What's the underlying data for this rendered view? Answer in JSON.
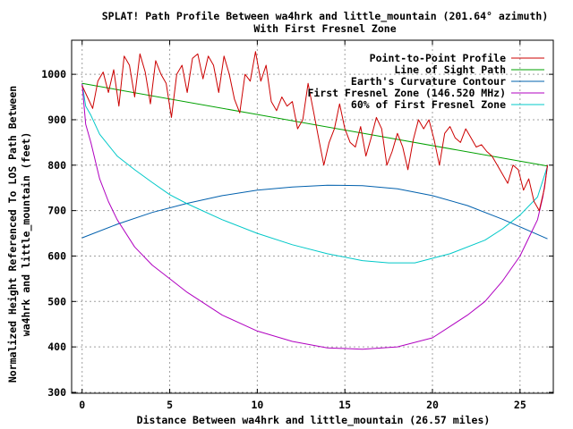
{
  "chart_data": {
    "type": "line",
    "title": "SPLAT! Path Profile Between wa4hrk and little_mountain (201.64° azimuth)",
    "subtitle": "With First Fresnel Zone",
    "xlabel": "Distance Between wa4hrk and little_mountain (26.57 miles)",
    "ylabel_line1": "Normalized Height Referenced To LOS Path Between",
    "ylabel_line2": "wa4hrk and little_mountain (feet)",
    "xlim": [
      -0.6,
      26.9
    ],
    "ylim": [
      298,
      1075
    ],
    "x_ticks": [
      0,
      5,
      10,
      15,
      20,
      25
    ],
    "y_ticks": [
      300,
      400,
      500,
      600,
      700,
      800,
      900,
      1000
    ],
    "grid": true,
    "legend_position": "top-right",
    "series": [
      {
        "name": "Point-to-Point Profile",
        "color": "#cc0000",
        "x": [
          0,
          0.3,
          0.6,
          0.9,
          1.2,
          1.5,
          1.8,
          2.1,
          2.4,
          2.7,
          3.0,
          3.3,
          3.6,
          3.9,
          4.2,
          4.5,
          4.8,
          5.1,
          5.4,
          5.7,
          6.0,
          6.3,
          6.6,
          6.9,
          7.2,
          7.5,
          7.8,
          8.1,
          8.4,
          8.7,
          9.0,
          9.3,
          9.6,
          9.9,
          10.2,
          10.5,
          10.8,
          11.1,
          11.4,
          11.7,
          12.0,
          12.3,
          12.6,
          12.9,
          13.2,
          13.5,
          13.8,
          14.1,
          14.4,
          14.7,
          15.0,
          15.3,
          15.6,
          15.9,
          16.2,
          16.5,
          16.8,
          17.1,
          17.4,
          17.7,
          18.0,
          18.3,
          18.6,
          18.9,
          19.2,
          19.5,
          19.8,
          20.1,
          20.4,
          20.7,
          21.0,
          21.3,
          21.6,
          21.9,
          22.2,
          22.5,
          22.8,
          23.1,
          23.4,
          23.7,
          24.0,
          24.3,
          24.6,
          24.9,
          25.2,
          25.5,
          25.8,
          26.1,
          26.4,
          26.57
        ],
        "y": [
          975,
          950,
          925,
          985,
          1005,
          960,
          1010,
          930,
          1040,
          1020,
          950,
          1045,
          1005,
          935,
          1030,
          1000,
          980,
          905,
          1000,
          1020,
          960,
          1035,
          1045,
          990,
          1040,
          1020,
          960,
          1040,
          1000,
          945,
          915,
          1000,
          985,
          1050,
          985,
          1020,
          940,
          920,
          950,
          930,
          940,
          880,
          900,
          980,
          920,
          860,
          800,
          850,
          880,
          935,
          880,
          850,
          840,
          885,
          820,
          860,
          905,
          880,
          800,
          830,
          870,
          840,
          790,
          855,
          900,
          880,
          900,
          855,
          800,
          870,
          885,
          860,
          850,
          880,
          860,
          840,
          845,
          830,
          820,
          800,
          780,
          760,
          800,
          790,
          745,
          770,
          720,
          700,
          750,
          800
        ]
      },
      {
        "name": "Line of Sight Path",
        "color": "#00a000",
        "x": [
          0,
          26.57
        ],
        "y": [
          980,
          798
        ]
      },
      {
        "name": "Earth's Curvature Contour",
        "color": "#0060ad",
        "x": [
          0,
          2,
          4,
          6,
          8,
          10,
          12,
          14,
          16,
          18,
          20,
          22,
          24,
          26.57
        ],
        "y": [
          640,
          670,
          696,
          716,
          733,
          745,
          752,
          756,
          755,
          748,
          733,
          711,
          681,
          638
        ]
      },
      {
        "name": "First Fresnel Zone (146.520 MHz)",
        "color": "#b000c0",
        "x": [
          0,
          0.2,
          0.5,
          1,
          1.5,
          2,
          3,
          4,
          5,
          6,
          8,
          10,
          12,
          14,
          16,
          18,
          20,
          22,
          23,
          24,
          25,
          25.5,
          26,
          26.3,
          26.57
        ],
        "y": [
          980,
          890,
          850,
          770,
          720,
          680,
          620,
          580,
          550,
          520,
          470,
          435,
          412,
          398,
          395,
          400,
          420,
          470,
          500,
          545,
          600,
          640,
          680,
          730,
          798
        ]
      },
      {
        "name": "60% of First Fresnel Zone",
        "color": "#00c8c8",
        "x": [
          0,
          0.2,
          0.5,
          1,
          2,
          3,
          4,
          5,
          6,
          8,
          10,
          12,
          14,
          16,
          17.5,
          19,
          21,
          23,
          24,
          25,
          26,
          26.57
        ],
        "y": [
          980,
          930,
          910,
          868,
          820,
          790,
          762,
          735,
          715,
          680,
          650,
          625,
          605,
          590,
          585,
          585,
          605,
          635,
          660,
          690,
          730,
          798
        ]
      }
    ]
  }
}
